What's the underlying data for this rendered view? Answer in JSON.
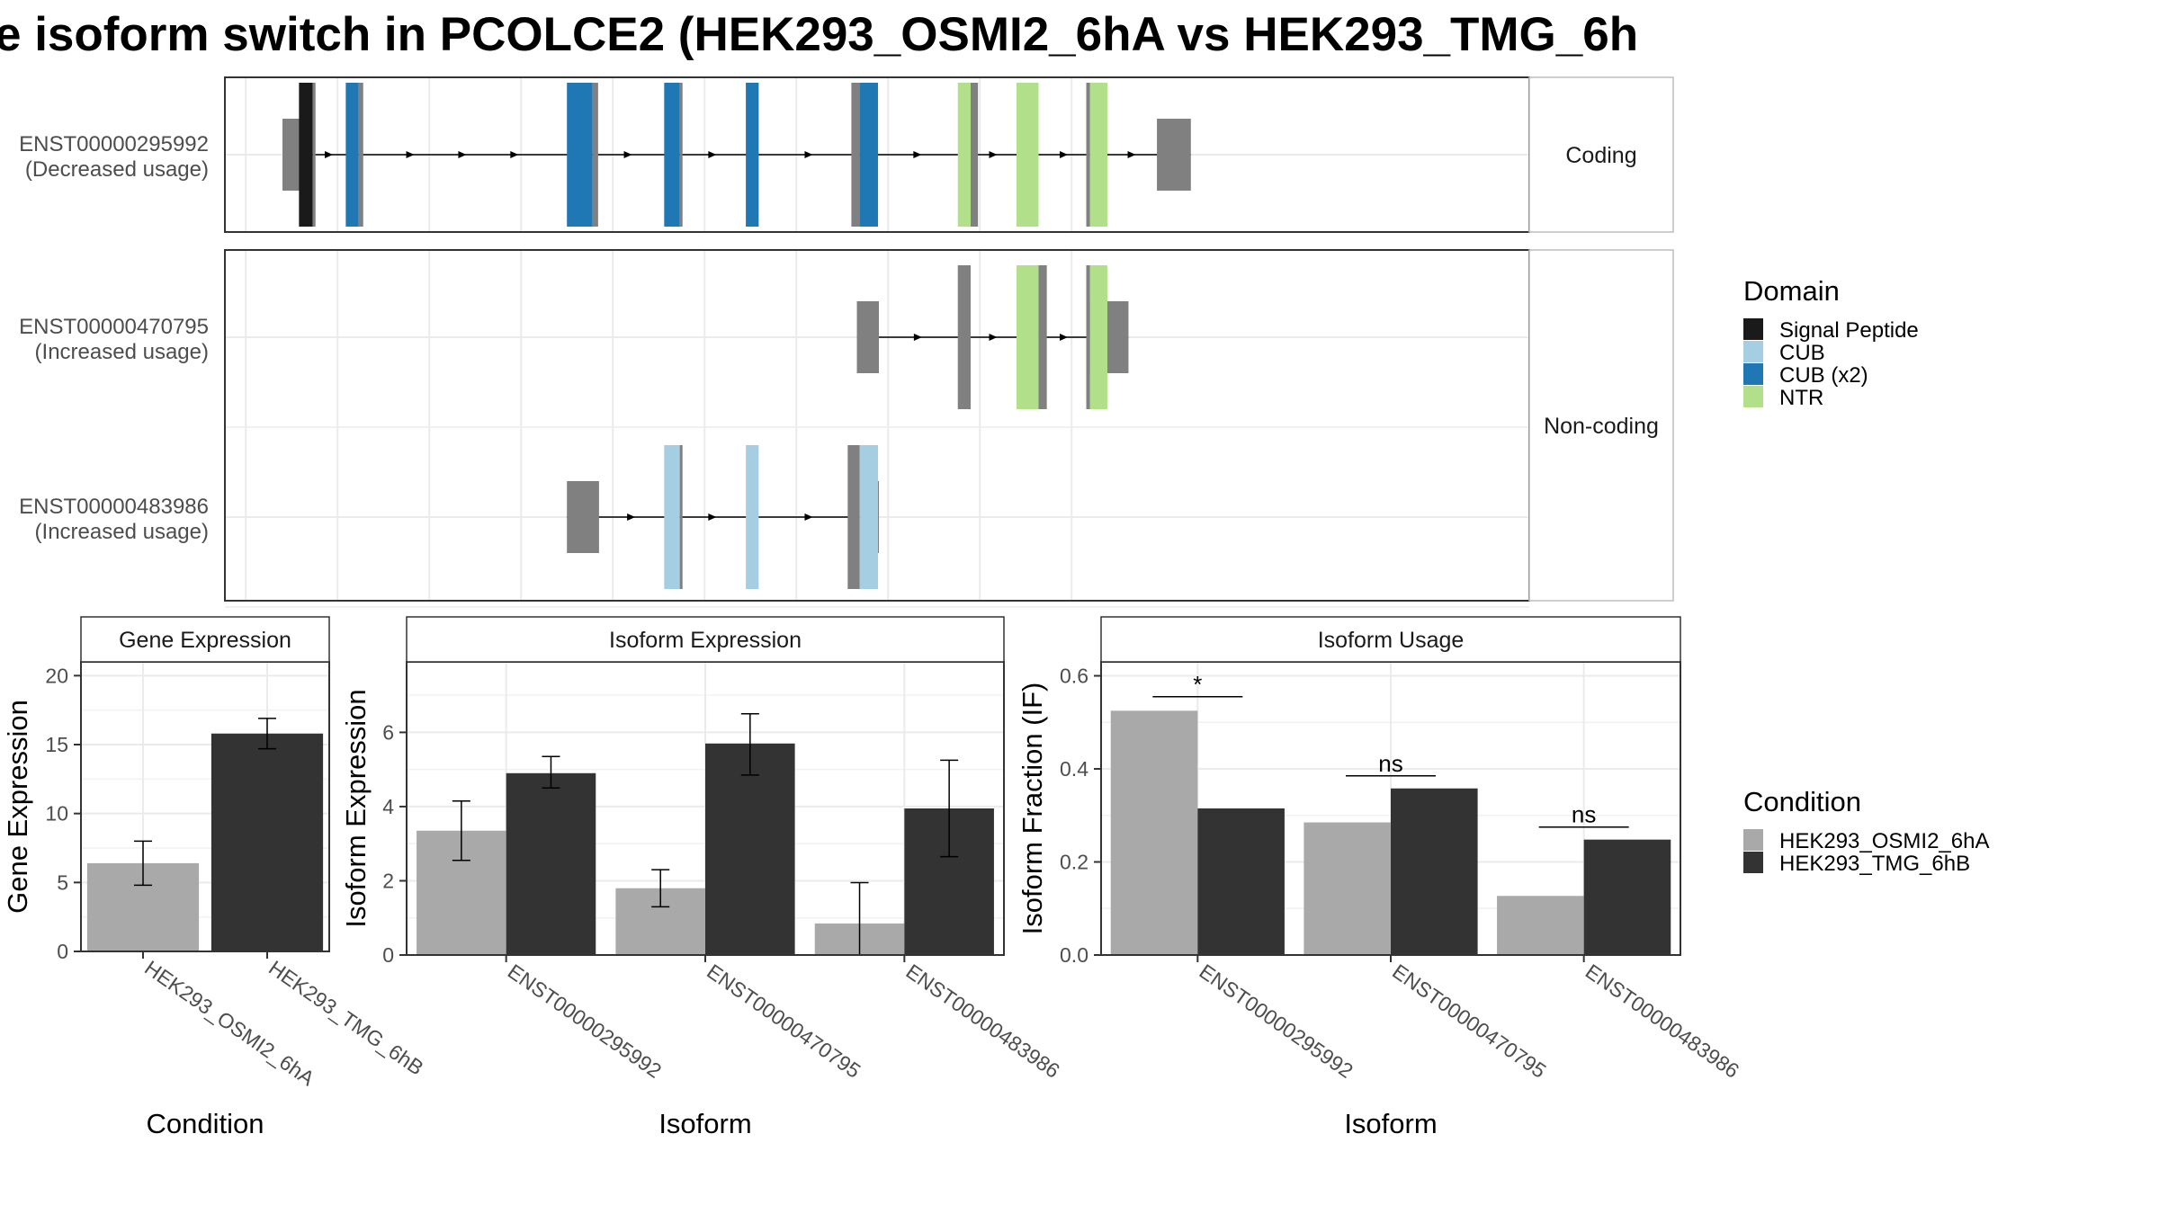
{
  "title": "e isoform switch in PCOLCE2 (HEK293_OSMI2_6hA vs HEK293_TMG_6h",
  "colors": {
    "signal_peptide": "#1a1a1a",
    "cub": "#a6cee3",
    "cub_x2": "#1f78b4",
    "ntr": "#b2df8a",
    "exon_plain": "#808080",
    "cond_a": "#a9a9a9",
    "cond_b": "#333333"
  },
  "structure": {
    "facets": [
      "Coding",
      "Non-coding"
    ],
    "isoforms": [
      {
        "id": "ENST00000295992",
        "usage": "(Decreased usage)",
        "facet": 0,
        "row": 0,
        "utrs": [
          [
            0.0,
            2.6
          ],
          [
            95.3,
            99.0
          ]
        ],
        "exons": [
          {
            "s": 1.8,
            "e": 3.3,
            "d": "signal_peptide",
            "cap": 0.3
          },
          {
            "s": 6.9,
            "e": 8.3,
            "d": "cub_x2",
            "cap": 0.5
          },
          {
            "s": 31.0,
            "e": 33.8,
            "d": "cub_x2",
            "cap": 0.6
          },
          {
            "s": 41.6,
            "e": 43.3,
            "d": "cub_x2",
            "cap": 0.3
          },
          {
            "s": 50.5,
            "e": 51.9,
            "d": "cub_x2",
            "cap": 0
          },
          {
            "s": 62.9,
            "e": 64.9,
            "d": "cub_x2",
            "cap": -0.9
          },
          {
            "s": 73.6,
            "e": 75.0,
            "d": "ntr",
            "cap": 0.8
          },
          {
            "s": 80.0,
            "e": 82.4,
            "d": "ntr",
            "cap": 0
          },
          {
            "s": 88.0,
            "e": 89.9,
            "d": "ntr",
            "cap": -0.4
          }
        ]
      },
      {
        "id": "ENST00000470795",
        "usage": "(Increased usage)",
        "facet": 1,
        "row": 0,
        "utrs": [
          [
            62.6,
            65.0
          ],
          [
            88.0,
            92.2
          ]
        ],
        "exons": [
          {
            "s": 73.6,
            "e": 75.0,
            "d": "plain",
            "cap": 0
          },
          {
            "s": 80.0,
            "e": 82.4,
            "d": "ntr",
            "cap": 0.9
          },
          {
            "s": 88.0,
            "e": 89.9,
            "d": "ntr",
            "cap": -0.4
          }
        ]
      },
      {
        "id": "ENST00000483986",
        "usage": "(Increased usage)",
        "facet": 1,
        "row": 1,
        "utrs": [
          [
            31.0,
            34.5
          ],
          [
            63.0,
            65.0
          ]
        ],
        "exons": [
          {
            "s": 41.6,
            "e": 43.3,
            "d": "cub",
            "cap": 0.3
          },
          {
            "s": 50.5,
            "e": 51.9,
            "d": "cub",
            "cap": 0
          },
          {
            "s": 62.9,
            "e": 64.9,
            "d": "cub",
            "cap": -1.3
          }
        ]
      }
    ]
  },
  "legend_domain": {
    "title": "Domain",
    "items": [
      {
        "label": "Signal Peptide",
        "color": "#1a1a1a"
      },
      {
        "label": "CUB",
        "color": "#a6cee3"
      },
      {
        "label": "CUB (x2)",
        "color": "#1f78b4"
      },
      {
        "label": "NTR",
        "color": "#b2df8a"
      }
    ]
  },
  "legend_condition": {
    "title": "Condition",
    "items": [
      {
        "label": "HEK293_OSMI2_6hA",
        "color": "#a9a9a9"
      },
      {
        "label": "HEK293_TMG_6hB",
        "color": "#333333"
      }
    ]
  },
  "chart_data": [
    {
      "type": "bar",
      "title": "Gene Expression",
      "xlabel": "Condition",
      "ylabel": "Gene Expression",
      "ylim": [
        0,
        21
      ],
      "yticks": [
        0,
        5,
        10,
        15,
        20
      ],
      "categories": [
        "HEK293_OSMI2_6hA",
        "HEK293_TMG_6hB"
      ],
      "values": [
        6.4,
        15.8
      ],
      "errors": [
        [
          4.8,
          8.0
        ],
        [
          14.7,
          16.9
        ]
      ]
    },
    {
      "type": "bar",
      "title": "Isoform Expression",
      "xlabel": "Isoform",
      "ylabel": "Isoform Expression",
      "ylim": [
        0,
        7.9
      ],
      "yticks": [
        0,
        2,
        4,
        6
      ],
      "categories": [
        "ENST00000295992",
        "ENST00000470795",
        "ENST00000483986"
      ],
      "series": [
        {
          "name": "HEK293_OSMI2_6hA",
          "values": [
            3.35,
            1.8,
            0.85
          ],
          "errors": [
            [
              2.55,
              4.15
            ],
            [
              1.3,
              2.3
            ],
            [
              0.0,
              1.95
            ]
          ]
        },
        {
          "name": "HEK293_TMG_6hB",
          "values": [
            4.9,
            5.7,
            3.95
          ],
          "errors": [
            [
              4.5,
              5.35
            ],
            [
              4.85,
              6.5
            ],
            [
              2.65,
              5.25
            ]
          ]
        }
      ]
    },
    {
      "type": "bar",
      "title": "Isoform Usage",
      "xlabel": "Isoform",
      "ylabel": "Isoform Fraction (IF)",
      "ylim": [
        0,
        0.63
      ],
      "yticks": [
        0.0,
        0.2,
        0.4,
        0.6
      ],
      "categories": [
        "ENST00000295992",
        "ENST00000470795",
        "ENST00000483986"
      ],
      "series": [
        {
          "name": "HEK293_OSMI2_6hA",
          "values": [
            0.525,
            0.285,
            0.127
          ]
        },
        {
          "name": "HEK293_TMG_6hB",
          "values": [
            0.315,
            0.358,
            0.248
          ]
        }
      ],
      "significance": [
        "*",
        "ns",
        "ns"
      ],
      "significance_y": [
        0.555,
        0.385,
        0.275
      ]
    }
  ]
}
